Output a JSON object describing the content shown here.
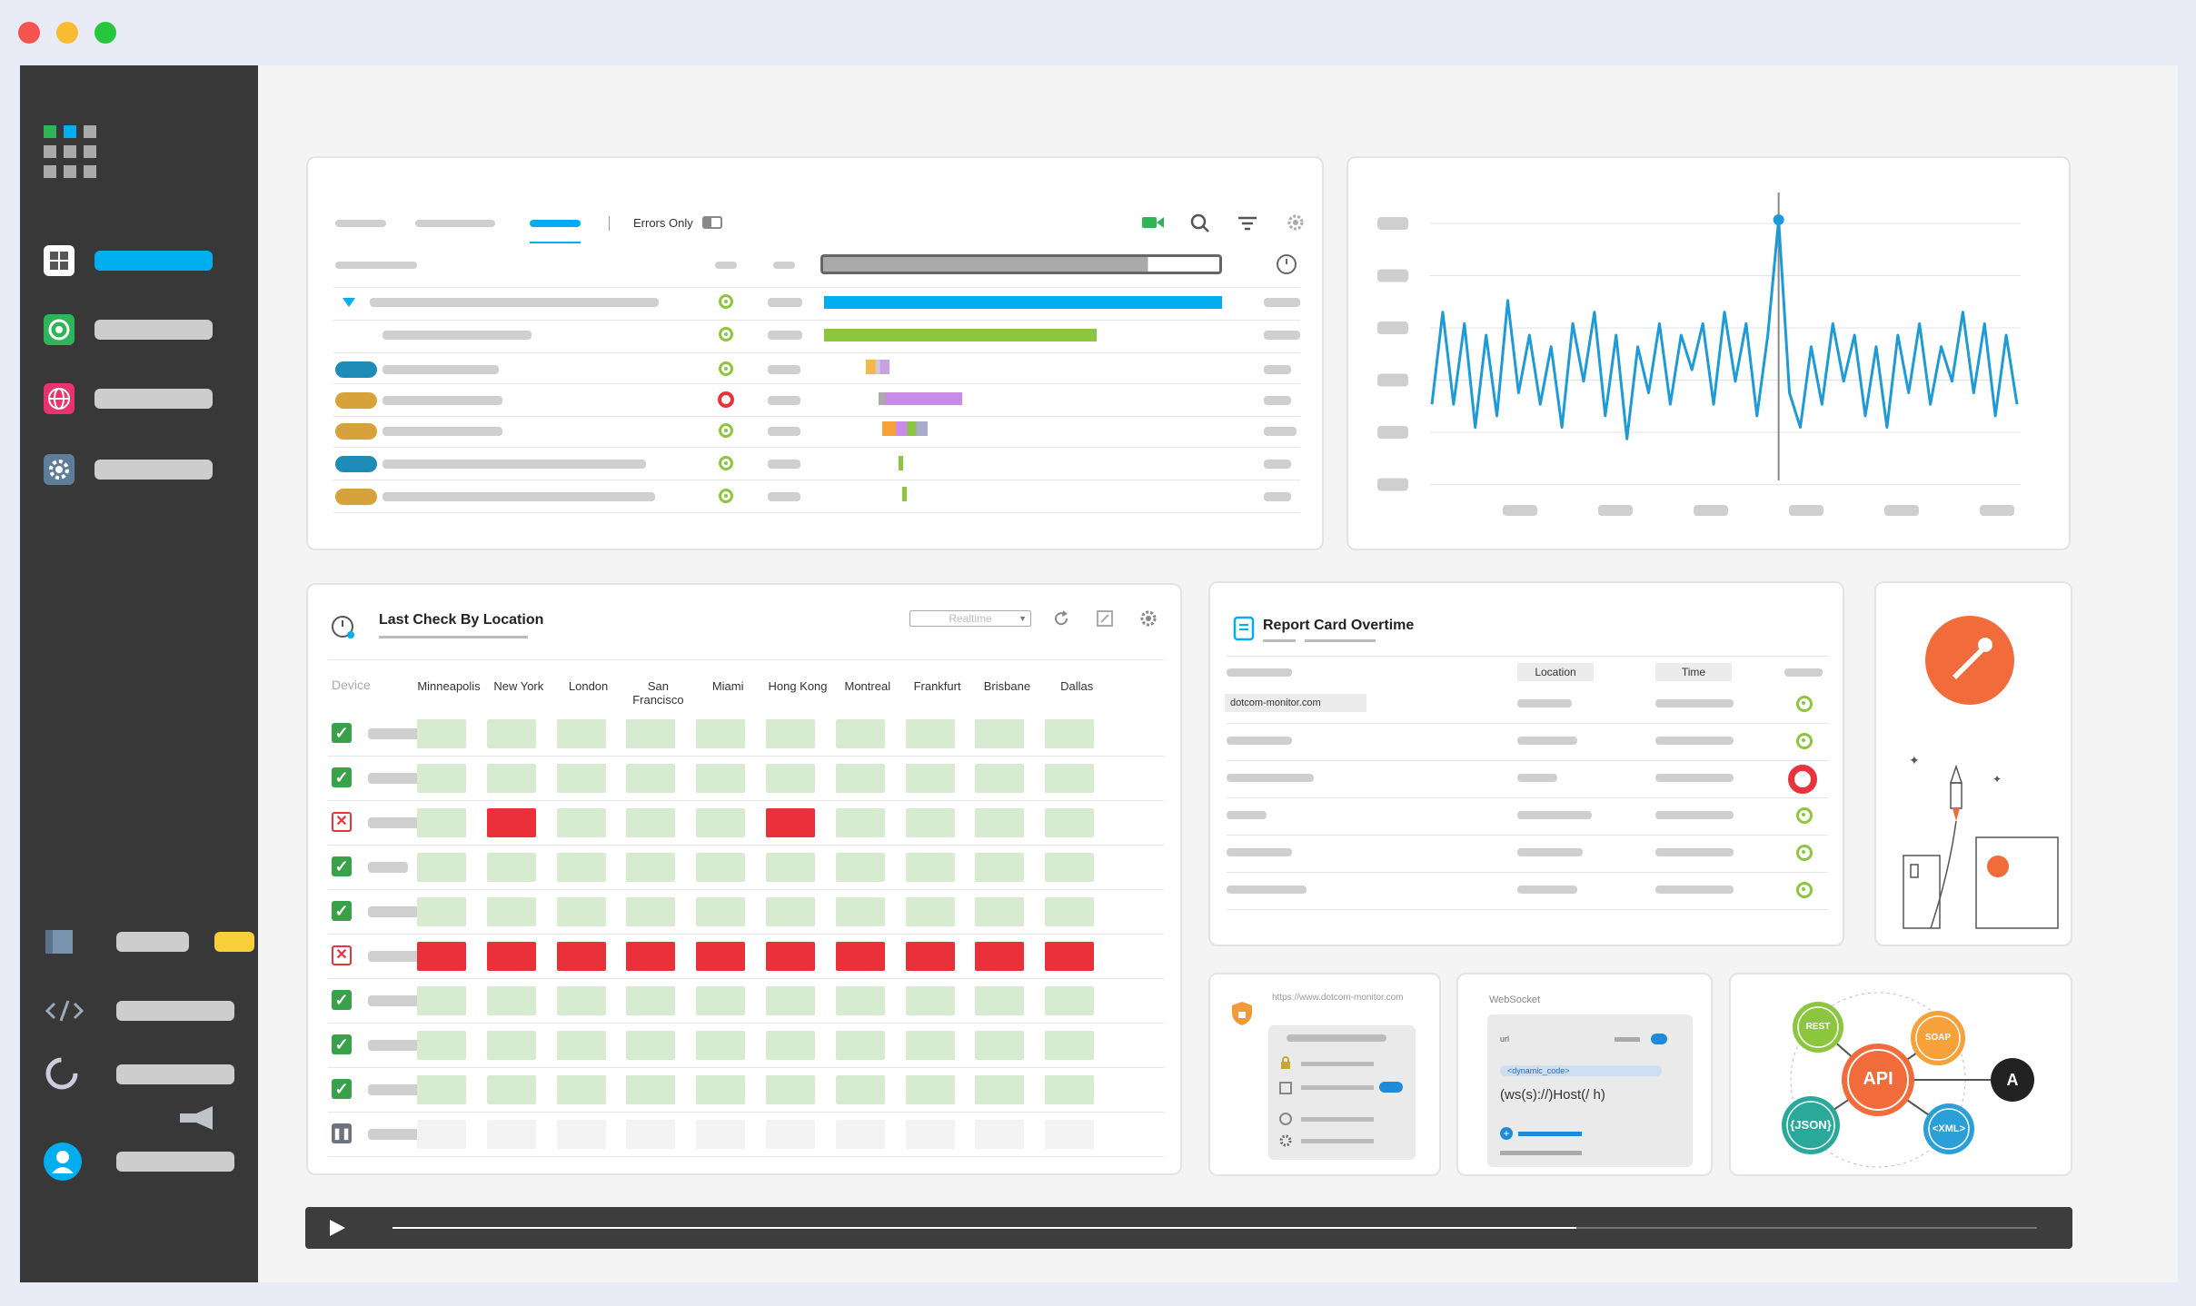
{
  "window": {
    "controls": [
      "close",
      "minimize",
      "maximize"
    ]
  },
  "colors": {
    "accent": "#00aeef",
    "ok": "#8cc63f",
    "error": "#e8323c",
    "grid_ok": "#d6ebcf",
    "grid_err": "#ea3038",
    "sidebar": "#383838"
  },
  "sidebar": {
    "items": [
      {
        "icon": "dashboard-icon",
        "active": true
      },
      {
        "icon": "target-icon"
      },
      {
        "icon": "globe-icon"
      },
      {
        "icon": "gear-icon"
      },
      {
        "icon": "book-icon",
        "badge": true
      },
      {
        "icon": "code-icon"
      },
      {
        "icon": "loading-icon"
      },
      {
        "icon": "user-icon"
      }
    ]
  },
  "waterfall": {
    "errors_only_label": "Errors Only",
    "icons": [
      "video-icon",
      "search-icon",
      "filter-icon",
      "settings-icon",
      "clock-icon"
    ],
    "rows": [
      {
        "status": "ok"
      },
      {
        "status": "ok"
      },
      {
        "status": "ok"
      },
      {
        "status": "error"
      },
      {
        "status": "ok"
      },
      {
        "status": "ok"
      },
      {
        "status": "ok"
      }
    ]
  },
  "line_chart": {
    "chart_data": {
      "type": "line",
      "values": [
        0.2,
        0.6,
        0.2,
        0.55,
        0.1,
        0.5,
        0.15,
        0.65,
        0.25,
        0.5,
        0.2,
        0.45,
        0.1,
        0.55,
        0.3,
        0.6,
        0.15,
        0.5,
        0.05,
        0.45,
        0.25,
        0.55,
        0.2,
        0.5,
        0.35,
        0.55,
        0.2,
        0.6,
        0.3,
        0.55,
        0.15,
        0.5,
        1.0,
        0.25,
        0.1,
        0.45,
        0.2,
        0.55,
        0.3,
        0.5,
        0.15,
        0.45,
        0.1,
        0.5,
        0.25,
        0.55,
        0.2,
        0.45,
        0.3,
        0.6,
        0.25,
        0.55,
        0.15,
        0.5,
        0.2
      ],
      "peak_index": 32,
      "ylim": [
        0,
        1
      ],
      "grid": true
    }
  },
  "location": {
    "title": "Last Check By Location",
    "realtime_placeholder": "Realtime",
    "device_header": "Device",
    "locations": [
      "Minneapolis",
      "New York",
      "London",
      "San Francisco",
      "Miami",
      "Hong Kong",
      "Montreal",
      "Frankfurt",
      "Brisbane",
      "Dallas"
    ],
    "rows": [
      {
        "status": "ok",
        "cells": "gggggggggg"
      },
      {
        "status": "ok",
        "cells": "gggggggggg"
      },
      {
        "status": "err",
        "cells": "grgggrgggg"
      },
      {
        "status": "ok",
        "cells": "gggggggggg"
      },
      {
        "status": "ok",
        "cells": "gggggggggg"
      },
      {
        "status": "err",
        "cells": "rrrrrrrrrr"
      },
      {
        "status": "ok",
        "cells": "gggggggggg"
      },
      {
        "status": "ok",
        "cells": "gggggggggg"
      },
      {
        "status": "ok",
        "cells": "gggggggggg"
      },
      {
        "status": "pause",
        "cells": "bbbbbbbbbb"
      }
    ]
  },
  "report": {
    "title": "Report Card Overtime",
    "col_location": "Location",
    "col_time": "Time",
    "first_row": "dotcom-monitor.com",
    "rows": [
      "ok",
      "ok",
      "error",
      "ok",
      "ok",
      "ok"
    ]
  },
  "mini_cards": {
    "ssl_url": "https://www.dotcom-monitor.com",
    "websocket_title": "WebSocket",
    "ws_url_label": "url",
    "ws_dynamic": "<dynamic_code>",
    "ws_host": "(ws(s)://)Host(/ h)",
    "api_hub": "API",
    "api_rest": "REST",
    "api_soap": "SOAP",
    "api_json": "{JSON}",
    "api_xml": "<XML>",
    "api_logo": "A"
  },
  "player": {
    "progress": 0.72
  }
}
